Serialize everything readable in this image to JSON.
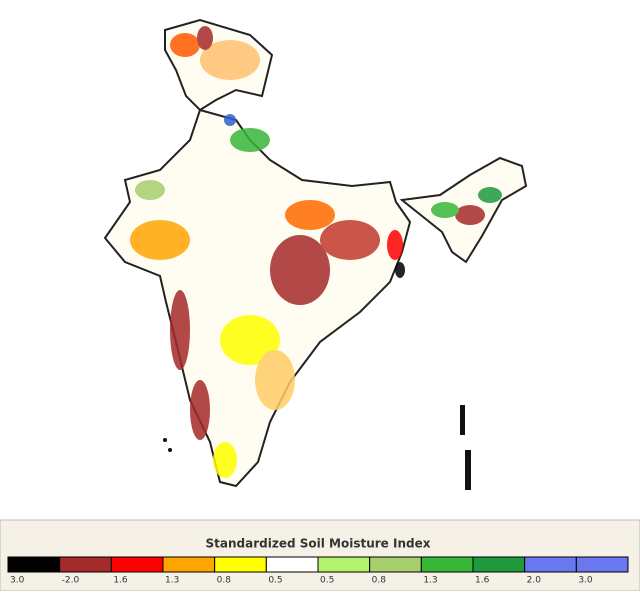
{
  "legend": {
    "title": "Standardized Soil Moisture Index",
    "items": [
      {
        "label": "3.0",
        "color": "#000000"
      },
      {
        "label": "-2.0",
        "color": "#a52a2a"
      },
      {
        "label": "1.6",
        "color": "#ff0000"
      },
      {
        "label": "1.3",
        "color": "#ffa500"
      },
      {
        "label": "0.8",
        "color": "#ffff00"
      },
      {
        "label": "0.5",
        "color": "#ffffff"
      },
      {
        "label": "0.5",
        "color": "#b4f26e"
      },
      {
        "label": "0.8",
        "color": "#a6cf6e"
      },
      {
        "label": "1.3",
        "color": "#38b638"
      },
      {
        "label": "1.6",
        "color": "#1e9a3c"
      },
      {
        "label": "2.0",
        "color": "#6a78f0"
      },
      {
        "label": "3.0",
        "color": "#6a78f0"
      }
    ]
  }
}
